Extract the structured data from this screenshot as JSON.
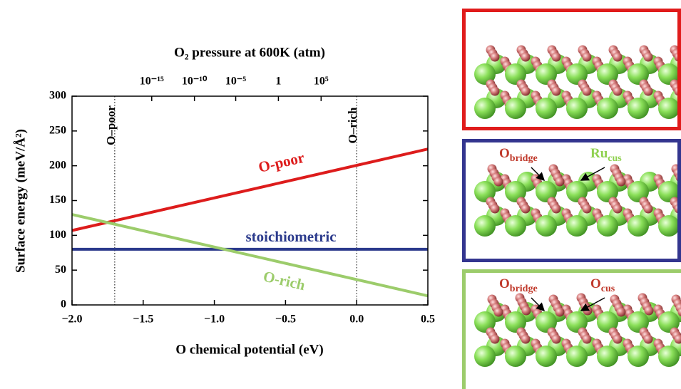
{
  "chart_data": {
    "type": "line",
    "top_axis_label": "O₂ pressure at 600K  (atm)",
    "x_label": "O chemical potential  (eV)",
    "y_label": "Surface energy  (meV/Å²)",
    "x": [
      -2,
      0.5
    ],
    "series": [
      {
        "name": "O-poor",
        "color": "#dd1c1c",
        "values": [
          107,
          224
        ]
      },
      {
        "name": "stoichiometric",
        "color": "#2b3a8c",
        "values": [
          80,
          80
        ]
      },
      {
        "name": "O-rich",
        "color": "#9ccc6b",
        "values": [
          130,
          13
        ]
      }
    ],
    "xlim": [
      -2,
      0.5
    ],
    "ylim": [
      0,
      300
    ],
    "xticks": [
      {
        "value": -2,
        "label": "−2.0"
      },
      {
        "value": -1.5,
        "label": "−1.5"
      },
      {
        "value": -1,
        "label": "−1.0"
      },
      {
        "value": -0.5,
        "label": "−0.5"
      },
      {
        "value": 0,
        "label": "0.0"
      },
      0.5
    ],
    "yticks": [
      0,
      50,
      100,
      150,
      200,
      250,
      300
    ],
    "top_xticks": [
      {
        "value": -1.44,
        "label": "10⁻¹⁵"
      },
      {
        "value": -1.14,
        "label": "10⁻¹⁰"
      },
      {
        "value": -0.85,
        "label": "10⁻⁵"
      },
      {
        "value": -0.55,
        "label": "1"
      },
      {
        "value": -0.25,
        "label": "10⁵"
      }
    ],
    "reference_lines": [
      {
        "x": -1.7,
        "label": "O–poor"
      },
      {
        "x": 0,
        "label": "O–rich"
      }
    ]
  },
  "panels": [
    {
      "color": "#e01b1b"
    },
    {
      "color": "#33358f",
      "labels": [
        {
          "text": "O",
          "sub": "bridge",
          "color": "#c0392b"
        },
        {
          "text": "Ru",
          "sub": "cus",
          "color": "#8fd14f"
        }
      ]
    },
    {
      "color": "#9ccc6b",
      "oxygen_columns": true,
      "labels": [
        {
          "text": "O",
          "sub": "bridge",
          "color": "#c0392b"
        },
        {
          "text": "O",
          "sub": "cus",
          "color": "#c0392b"
        }
      ]
    }
  ]
}
